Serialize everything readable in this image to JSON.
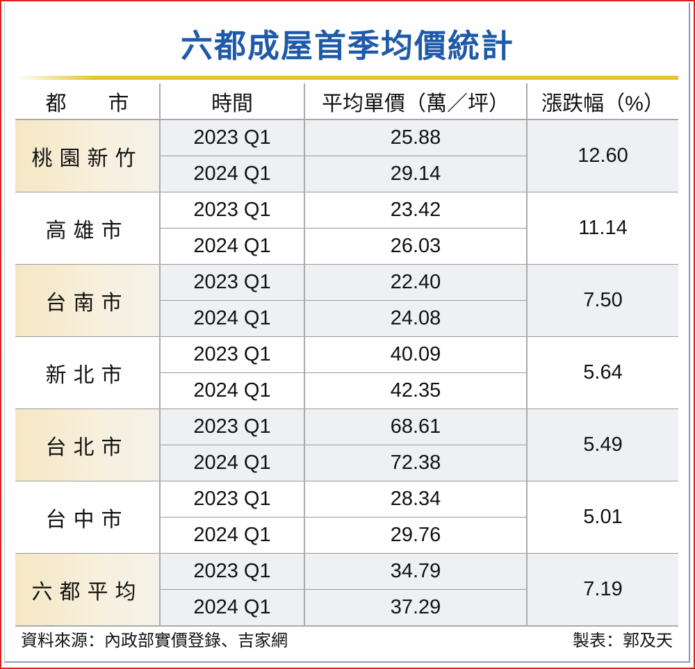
{
  "title": "六都成屋首季均價統計",
  "headers": [
    "都　　市",
    "時間",
    "平均單價（萬／坪）",
    "漲跌幅（%）"
  ],
  "rows": [
    {
      "city": "桃園新竹",
      "periods": [
        "2023 Q1",
        "2024 Q1"
      ],
      "prices": [
        "25.88",
        "29.14"
      ],
      "change": "12.60"
    },
    {
      "city": "高雄市",
      "periods": [
        "2023 Q1",
        "2024 Q1"
      ],
      "prices": [
        "23.42",
        "26.03"
      ],
      "change": "11.14"
    },
    {
      "city": "台南市",
      "periods": [
        "2023 Q1",
        "2024 Q1"
      ],
      "prices": [
        "22.40",
        "24.08"
      ],
      "change": "7.50"
    },
    {
      "city": "新北市",
      "periods": [
        "2023 Q1",
        "2024 Q1"
      ],
      "prices": [
        "40.09",
        "42.35"
      ],
      "change": "5.64"
    },
    {
      "city": "台北市",
      "periods": [
        "2023 Q1",
        "2024 Q1"
      ],
      "prices": [
        "68.61",
        "72.38"
      ],
      "change": "5.49"
    },
    {
      "city": "台中市",
      "periods": [
        "2023 Q1",
        "2024 Q1"
      ],
      "prices": [
        "28.34",
        "29.76"
      ],
      "change": "5.01"
    },
    {
      "city": "六都平均",
      "periods": [
        "2023 Q1",
        "2024 Q1"
      ],
      "prices": [
        "34.79",
        "37.29"
      ],
      "change": "7.19"
    }
  ],
  "footer": {
    "source": "資料來源：內政部實價登錄、吉家網",
    "credit": "製表：郭及天"
  },
  "colors": {
    "title": "#1f5aa8",
    "accent_line": "#e6c52a",
    "border": "#e0201e"
  }
}
